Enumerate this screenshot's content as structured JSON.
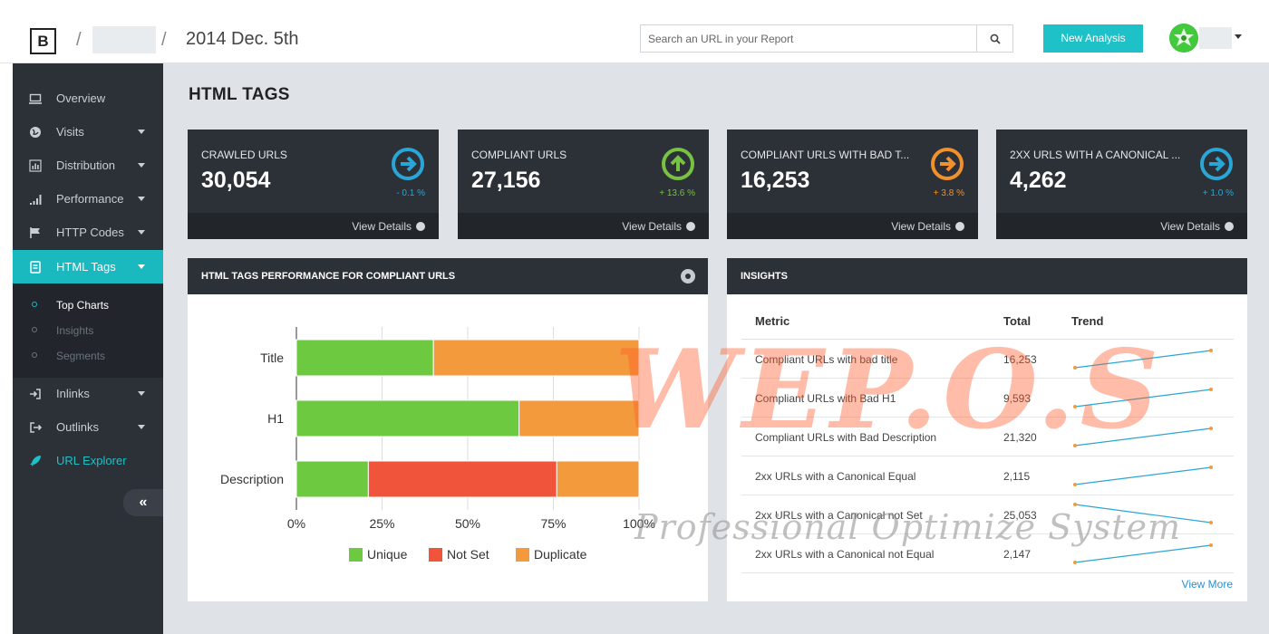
{
  "app": {
    "logo": "B",
    "breadcrumb_separator": "/",
    "report_date": "2014 Dec. 5th"
  },
  "search": {
    "placeholder": "Search an URL in your Report",
    "icon": "search-icon"
  },
  "header": {
    "new_analysis_label": "New Analysis",
    "avatar_icon": "user-avatar"
  },
  "sidebar": {
    "items": [
      {
        "label": "Overview",
        "icon": "monitor-icon",
        "has_caret": false
      },
      {
        "label": "Visits",
        "icon": "globe-icon",
        "has_caret": true
      },
      {
        "label": "Distribution",
        "icon": "bar-chart-icon",
        "has_caret": true
      },
      {
        "label": "Performance",
        "icon": "signal-icon",
        "has_caret": true
      },
      {
        "label": "HTTP Codes",
        "icon": "flag-icon",
        "has_caret": true
      },
      {
        "label": "HTML Tags",
        "icon": "file-code-icon",
        "has_caret": true,
        "active": true
      },
      {
        "label": "Inlinks",
        "icon": "sign-in-icon",
        "has_caret": true
      },
      {
        "label": "Outlinks",
        "icon": "sign-out-icon",
        "has_caret": true
      },
      {
        "label": "URL Explorer",
        "icon": "rocket-icon",
        "has_caret": false
      }
    ],
    "subitems": [
      {
        "label": "Top Charts",
        "current": true
      },
      {
        "label": "Insights",
        "current": false
      },
      {
        "label": "Segments",
        "current": false
      }
    ],
    "collapse_label": "«"
  },
  "page": {
    "title": "HTML TAGS"
  },
  "kpis": [
    {
      "label": "CRAWLED URLS",
      "value": "30,054",
      "delta": "- 0.1 %",
      "icon": "arrow-right-circle-icon",
      "color": "#2aa6d6",
      "footer": "View Details"
    },
    {
      "label": "COMPLIANT URLS",
      "value": "27,156",
      "delta": "+ 13.6 %",
      "icon": "arrow-up-circle-icon",
      "color": "#79c142",
      "footer": "View Details"
    },
    {
      "label": "COMPLIANT URLS WITH BAD T...",
      "value": "16,253",
      "delta": "+ 3.8 %",
      "icon": "arrow-right-circle-icon",
      "color": "#f0912d",
      "footer": "View Details"
    },
    {
      "label": "2XX URLS WITH A CANONICAL ...",
      "value": "4,262",
      "delta": "+ 1.0 %",
      "icon": "arrow-right-circle-icon",
      "color": "#2aa6d6",
      "footer": "View Details"
    }
  ],
  "chart_panel": {
    "title": "HTML TAGS PERFORMANCE FOR COMPLIANT URLS"
  },
  "chart_data": {
    "type": "bar",
    "orientation": "horizontal",
    "stacked": true,
    "categories": [
      "Title",
      "H1",
      "Description"
    ],
    "series": [
      {
        "name": "Unique",
        "values": [
          40,
          65,
          21
        ],
        "color": "#6dc93f"
      },
      {
        "name": "Not Set",
        "values": [
          0,
          0,
          55
        ],
        "color": "#f0543a"
      },
      {
        "name": "Duplicate",
        "values": [
          60,
          35,
          24
        ],
        "color": "#f29a3c"
      }
    ],
    "x_ticks": [
      "0%",
      "25%",
      "50%",
      "75%",
      "100%"
    ],
    "xlim": [
      0,
      100
    ],
    "grid": true,
    "legend_position": "bottom"
  },
  "insights": {
    "title": "INSIGHTS",
    "columns": [
      "Metric",
      "Total",
      "Trend"
    ],
    "rows": [
      {
        "metric": "Compliant URLs with bad title",
        "total": "16,253",
        "trend": "up"
      },
      {
        "metric": "Compliant URLs with Bad H1",
        "total": "9,593",
        "trend": "up"
      },
      {
        "metric": "Compliant URLs with Bad Description",
        "total": "21,320",
        "trend": "up"
      },
      {
        "metric": "2xx URLs with a Canonical Equal",
        "total": "2,115",
        "trend": "up"
      },
      {
        "metric": "2xx URLs with a Canonical not Set",
        "total": "25,053",
        "trend": "down"
      },
      {
        "metric": "2xx URLs with a Canonical not Equal",
        "total": "2,147",
        "trend": "up"
      }
    ],
    "view_more": "View More"
  },
  "watermark": {
    "main": "WEP.O.S",
    "sub": "Professional Optimize System"
  }
}
